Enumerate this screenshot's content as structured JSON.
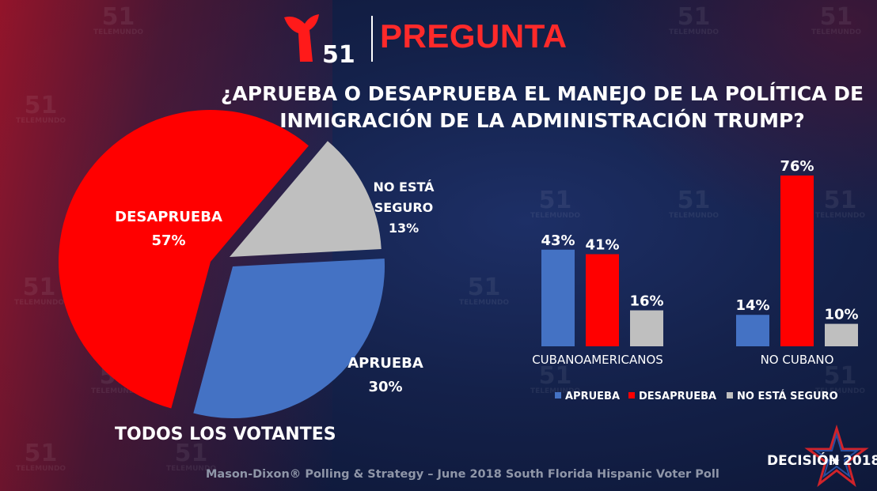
{
  "header": {
    "logo_number": "51",
    "brand_title": "PREGUNTA"
  },
  "question": "¿APRUEBA O DESAPRUEBA EL MANEJO DE LA POLÍTICA DE INMIGRACIÓN DE LA ADMINISTRACIÓN TRUMP?",
  "subtitle": "TODOS LOS VOTANTES",
  "source": "Mason-Dixon® Polling & Strategy – June 2018 South Florida Hispanic Voter Poll",
  "decision_logo": {
    "word": "DECISIÓN",
    "year": "2018"
  },
  "watermark": {
    "number": "51",
    "word": "TELEMUNDO"
  },
  "colors": {
    "aprueba": "#4472c4",
    "desaprueba": "#ff0000",
    "no_seguro": "#bfbfbf",
    "brand_red": "#ff2a2a"
  },
  "chart_data": [
    {
      "type": "pie",
      "title": "TODOS LOS VOTANTES",
      "slices": [
        {
          "label_line1": "DESAPRUEBA",
          "label_line2": "",
          "value": 57,
          "display": "57%",
          "color": "#ff0000"
        },
        {
          "label_line1": "NO ESTÁ",
          "label_line2": "SEGURO",
          "value": 13,
          "display": "13%",
          "color": "#bfbfbf"
        },
        {
          "label_line1": "APRUEBA",
          "label_line2": "",
          "value": 30,
          "display": "30%",
          "color": "#4472c4"
        }
      ]
    },
    {
      "type": "bar",
      "categories": [
        "CUBANOAMERICANOS",
        "NO CUBANO"
      ],
      "series": [
        {
          "name": "APRUEBA",
          "values": [
            43,
            14
          ],
          "color": "#4472c4"
        },
        {
          "name": "DESAPRUEBA",
          "values": [
            41,
            76
          ],
          "color": "#ff0000"
        },
        {
          "name": "NO ESTÁ SEGURO",
          "values": [
            16,
            10
          ],
          "color": "#bfbfbf"
        }
      ],
      "value_suffix": "%",
      "ylim": [
        0,
        80
      ],
      "legend": "bottom"
    }
  ]
}
